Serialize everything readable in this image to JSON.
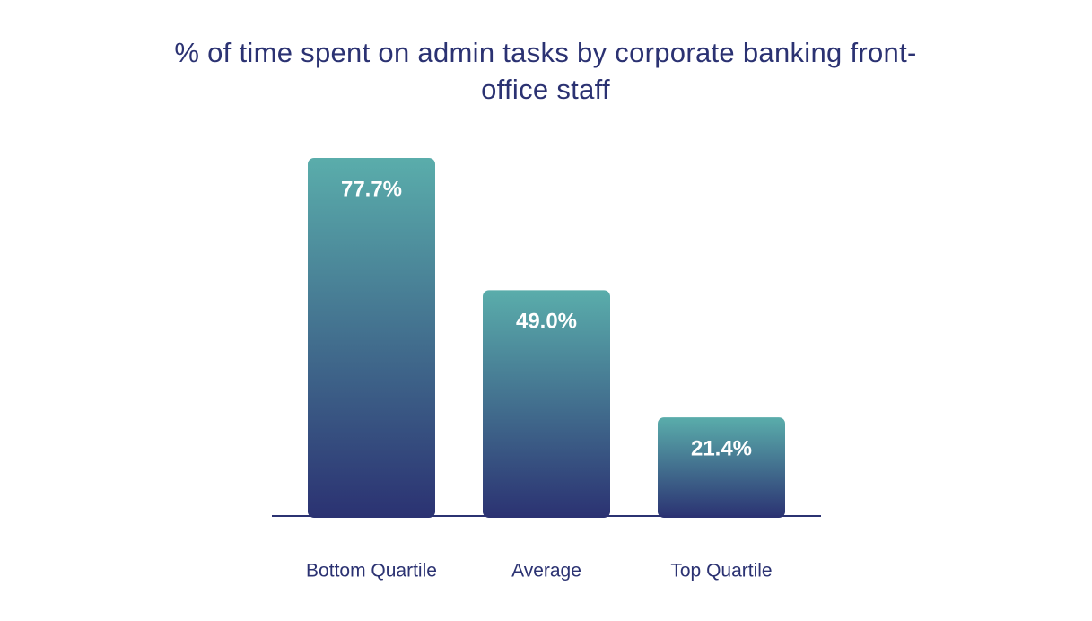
{
  "chart_data": {
    "type": "bar",
    "title": "% of time spent on admin tasks by corporate banking front-office staff",
    "categories": [
      "Bottom Quartile",
      "Average",
      "Top Quartile"
    ],
    "values": [
      77.7,
      49.0,
      21.4
    ],
    "value_labels": [
      "77.7%",
      "49.0%",
      "21.4%"
    ],
    "color_top": "#5aadab",
    "color_bottom": "#2b3272"
  }
}
